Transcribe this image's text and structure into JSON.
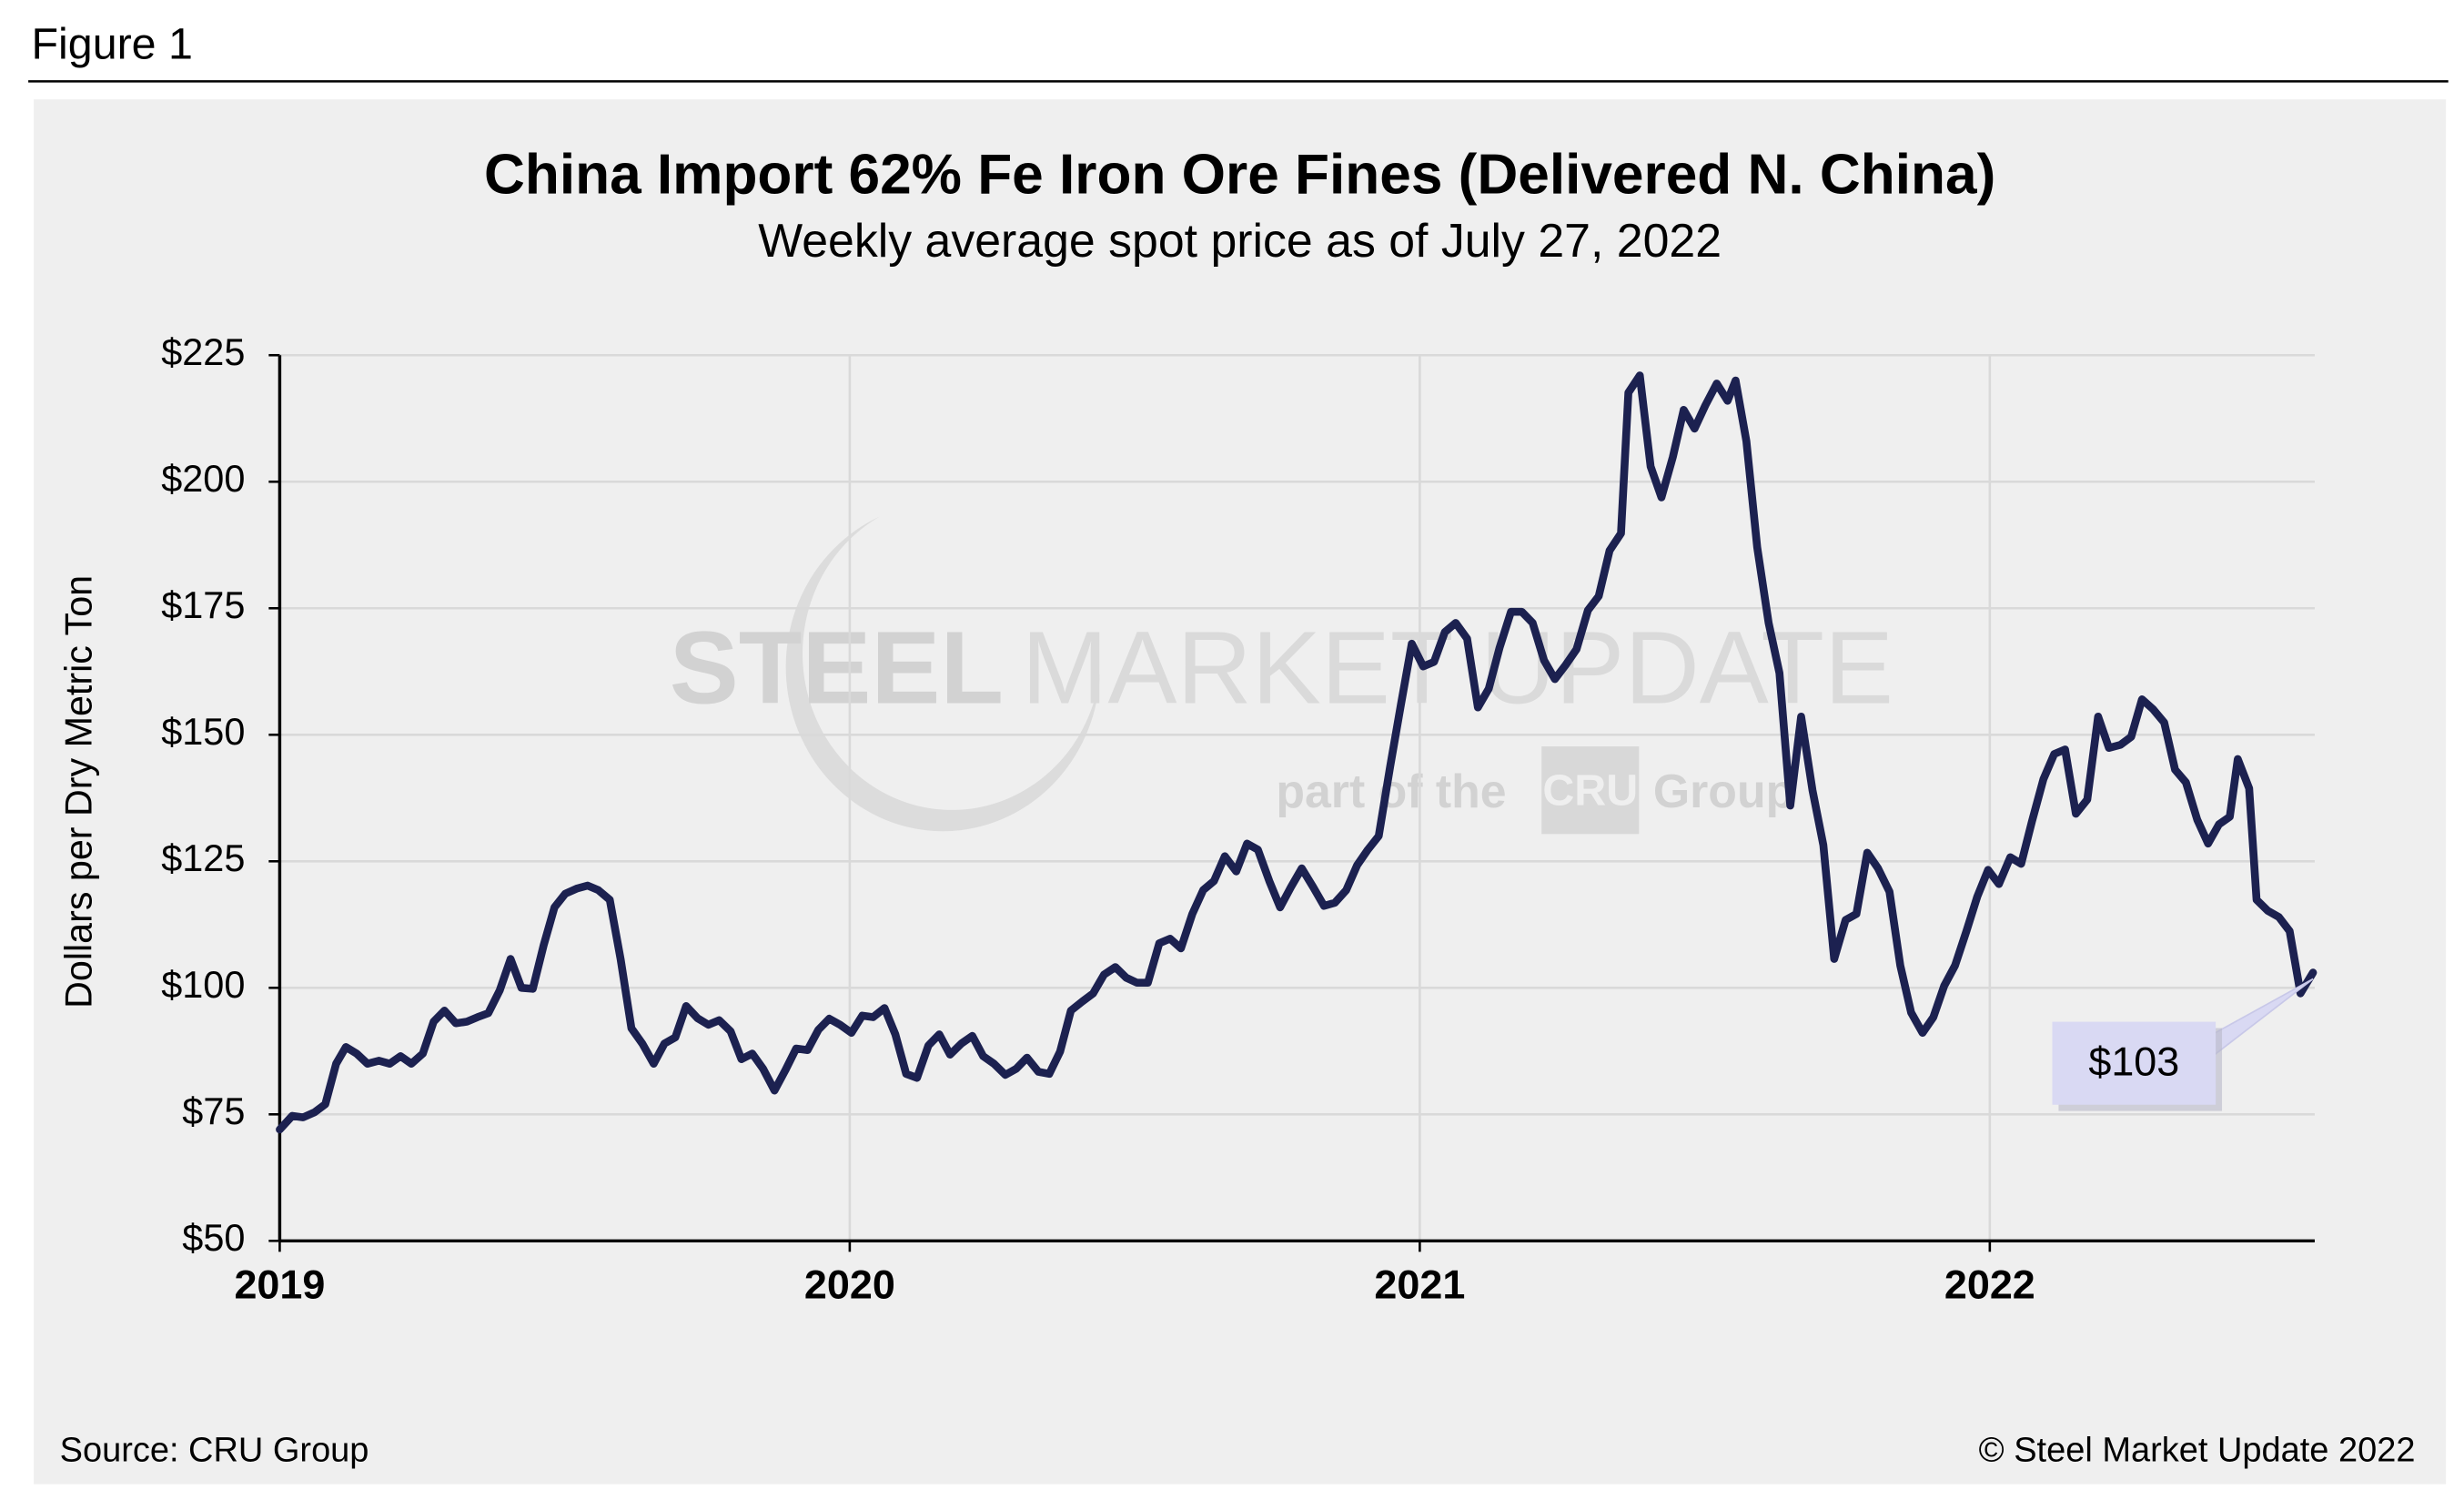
{
  "header": {
    "figure_label": "Figure 1"
  },
  "watermark": {
    "brand_bold": "STEEL",
    "brand_light": "MARKET UPDATE",
    "tagline": "part of the",
    "logo": "CRU",
    "group": "Group"
  },
  "footer": {
    "source": "Source: CRU Group",
    "copyright": "© Steel Market Update 2022"
  },
  "chart_data": {
    "type": "line",
    "title": "China Import 62% Fe Iron Ore Fines (Delivered N. China)",
    "subtitle": "Weekly average spot price as of July 27, 2022",
    "y_label": "Dollars per Dry Metric Ton",
    "color": "#1c2150",
    "grid": true,
    "xlim": [
      2019,
      2022.57
    ],
    "xticks": [
      2019,
      2020,
      2021,
      2022
    ],
    "ylim": [
      50,
      225
    ],
    "yticks": [
      {
        "value": 50,
        "label": "$50"
      },
      {
        "value": 75,
        "label": "$75"
      },
      {
        "value": 100,
        "label": "$100"
      },
      {
        "value": 125,
        "label": "$125"
      },
      {
        "value": 150,
        "label": "$150"
      },
      {
        "value": 175,
        "label": "$175"
      },
      {
        "value": 200,
        "label": "$200"
      },
      {
        "value": 225,
        "label": "$225"
      }
    ],
    "annotations": [
      {
        "text": "$103"
      }
    ],
    "x": [
      2019.0,
      2019.022,
      2019.041,
      2019.061,
      2019.08,
      2019.099,
      2019.116,
      2019.135,
      2019.154,
      2019.174,
      2019.193,
      2019.212,
      2019.231,
      2019.251,
      2019.27,
      2019.289,
      2019.309,
      2019.328,
      2019.347,
      2019.366,
      2019.386,
      2019.405,
      2019.424,
      2019.444,
      2019.463,
      2019.482,
      2019.501,
      2019.521,
      2019.54,
      2019.559,
      2019.579,
      2019.598,
      2019.617,
      2019.636,
      2019.656,
      2019.675,
      2019.694,
      2019.713,
      2019.733,
      2019.752,
      2019.771,
      2019.791,
      2019.81,
      2019.829,
      2019.848,
      2019.868,
      2019.887,
      2019.906,
      2019.926,
      2019.945,
      2019.964,
      2019.983,
      2020.003,
      2020.022,
      2020.041,
      2020.061,
      2020.08,
      2020.099,
      2020.118,
      2020.138,
      2020.157,
      2020.176,
      2020.196,
      2020.215,
      2020.234,
      2020.253,
      2020.273,
      2020.292,
      2020.311,
      2020.331,
      2020.35,
      2020.369,
      2020.388,
      2020.408,
      2020.427,
      2020.446,
      2020.466,
      2020.485,
      2020.504,
      2020.523,
      2020.543,
      2020.562,
      2020.581,
      2020.601,
      2020.62,
      2020.639,
      2020.658,
      2020.678,
      2020.697,
      2020.716,
      2020.736,
      2020.755,
      2020.774,
      2020.793,
      2020.813,
      2020.832,
      2020.851,
      2020.871,
      2020.89,
      2020.909,
      2020.928,
      2020.948,
      2020.967,
      2020.986,
      2021.006,
      2021.025,
      2021.044,
      2021.063,
      2021.083,
      2021.102,
      2021.121,
      2021.14,
      2021.16,
      2021.179,
      2021.198,
      2021.218,
      2021.237,
      2021.256,
      2021.275,
      2021.295,
      2021.314,
      2021.333,
      2021.353,
      2021.366,
      2021.386,
      2021.405,
      2021.424,
      2021.444,
      2021.463,
      2021.482,
      2021.501,
      2021.521,
      2021.54,
      2021.554,
      2021.573,
      2021.592,
      2021.612,
      2021.631,
      2021.65,
      2021.669,
      2021.689,
      2021.708,
      2021.727,
      2021.747,
      2021.766,
      2021.785,
      2021.804,
      2021.824,
      2021.843,
      2021.862,
      2021.882,
      2021.901,
      2021.92,
      2021.939,
      2021.959,
      2021.978,
      2021.997,
      2022.016,
      2022.036,
      2022.055,
      2022.074,
      2022.094,
      2022.113,
      2022.132,
      2022.151,
      2022.171,
      2022.19,
      2022.209,
      2022.229,
      2022.248,
      2022.267,
      2022.286,
      2022.306,
      2022.325,
      2022.344,
      2022.364,
      2022.383,
      2022.402,
      2022.421,
      2022.435,
      2022.455,
      2022.468,
      2022.488,
      2022.507,
      2022.526,
      2022.545,
      2022.567
    ],
    "values": [
      72,
      74.7,
      74.4,
      75.4,
      77,
      85,
      88.3,
      87,
      85,
      85.6,
      85,
      86.5,
      85,
      87,
      93.3,
      95.5,
      93,
      93.3,
      94.2,
      95,
      99.5,
      105.7,
      100,
      99.8,
      108.4,
      115.9,
      118.6,
      119.6,
      120.2,
      119.3,
      117.4,
      105.7,
      92,
      89,
      85,
      89,
      90.2,
      96.4,
      94,
      92.7,
      93.6,
      91.4,
      85.9,
      87,
      84,
      79.7,
      83.7,
      88,
      87.7,
      91.7,
      93.9,
      92.7,
      91.1,
      94.5,
      94.2,
      96,
      90.8,
      83,
      82.2,
      88.6,
      90.8,
      86.8,
      89,
      90.5,
      86.5,
      85,
      82.8,
      84,
      86.2,
      83.4,
      83,
      87.4,
      95.5,
      97.3,
      98.9,
      102.6,
      104.1,
      102,
      101,
      101,
      108.8,
      109.7,
      107.8,
      114.6,
      119.3,
      121.1,
      126,
      123,
      128.5,
      127.3,
      121.1,
      115.9,
      119.9,
      123.6,
      119.9,
      116.2,
      116.8,
      119.3,
      124.2,
      127.3,
      130,
      143.7,
      156,
      168,
      163.5,
      164.4,
      170.3,
      172.1,
      169,
      155.4,
      159.1,
      167.2,
      174.3,
      174.3,
      172.1,
      164.7,
      161,
      163.8,
      166.9,
      174.6,
      177.4,
      186.4,
      189.8,
      217.6,
      221,
      203,
      196.9,
      204.9,
      214.2,
      210.5,
      215.1,
      219.4,
      216,
      220,
      208,
      187,
      172.1,
      162.2,
      136,
      153.6,
      139,
      128.2,
      105.7,
      113.4,
      114.6,
      126.7,
      123.6,
      119,
      104.4,
      95.1,
      91.1,
      94.2,
      100.4,
      104.4,
      111.2,
      118,
      123.3,
      120.5,
      125.8,
      124.5,
      132.9,
      141.2,
      146.2,
      147.1,
      134.4,
      137.2,
      153.6,
      147.4,
      148,
      149.6,
      157,
      155.1,
      152.4,
      143.1,
      140.6,
      133.2,
      128.5,
      132.3,
      133.8,
      145.2,
      139.4,
      117.4,
      115.2,
      114,
      111.2,
      98.9,
      103
    ]
  }
}
